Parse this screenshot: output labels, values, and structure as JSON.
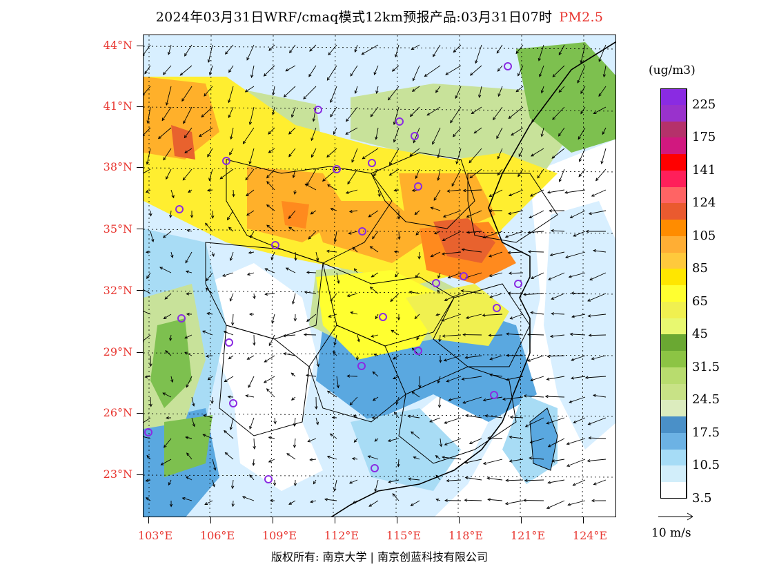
{
  "title": {
    "text": "2024年03月31日WRF/cmaq模式12km预报产品:03月31日07时",
    "pollutant": "PM2.5"
  },
  "map": {
    "lat_ticks": [
      "44°N",
      "41°N",
      "38°N",
      "35°N",
      "32°N",
      "29°N",
      "26°N",
      "23°N"
    ],
    "lon_ticks": [
      "103°E",
      "106°E",
      "109°E",
      "112°E",
      "115°E",
      "118°E",
      "121°E",
      "124°E"
    ],
    "background_colors": {
      "clean": "#ffffff",
      "very_low": "#d8efff",
      "low": "#a8dcf5",
      "moderate_low": "#5aa8e0",
      "green_light": "#c8e29a",
      "green": "#7dc04f",
      "yellow": "#ffee30",
      "orange": "#ffb02a",
      "dark_orange": "#ff8a1e",
      "red_orange": "#e8622e"
    }
  },
  "colorbar": {
    "unit": "(ug/m3)",
    "colors": [
      "#8a2be2",
      "#9932cc",
      "#b5316a",
      "#d1187f",
      "#ff0000",
      "#ff1f5a",
      "#ff6464",
      "#ea5a2f",
      "#ff8c00",
      "#ffae34",
      "#ffc93c",
      "#ffe600",
      "#ffff30",
      "#f0f050",
      "#e8f870",
      "#6aa832",
      "#8cc444",
      "#b8dc6e",
      "#c8e286",
      "#dcecbe",
      "#4a90c8",
      "#6cb2e4",
      "#a6dcf6",
      "#d2eefa",
      "#ffffff"
    ],
    "labels": [
      "225",
      "175",
      "141",
      "124",
      "105",
      "85",
      "65",
      "45",
      "31.5",
      "24.5",
      "17.5",
      "10.5",
      "3.5"
    ]
  },
  "wind_legend": {
    "label": "10 m/s"
  },
  "credit": "版权所有: 南京大学 | 南京创蓝科技有限公司",
  "city_markers_count": 25
}
